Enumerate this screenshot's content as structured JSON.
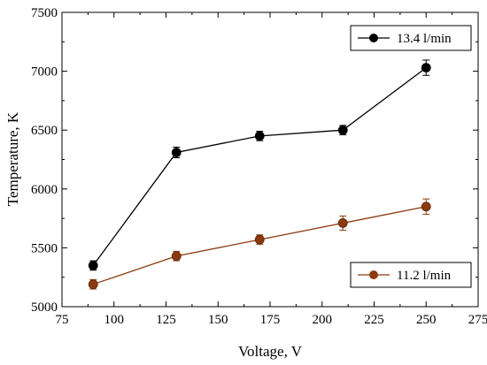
{
  "chart_data": {
    "type": "line",
    "xlabel": "Voltage, V",
    "ylabel": "Temperature, K",
    "xlim": [
      75,
      275
    ],
    "ylim": [
      5000,
      7500
    ],
    "x_ticks": [
      75,
      100,
      125,
      150,
      175,
      200,
      225,
      250,
      275
    ],
    "y_ticks": [
      5000,
      5500,
      6000,
      6500,
      7000,
      7500
    ],
    "grid": false,
    "series": [
      {
        "name": "13.4 l/min",
        "color": "#000000",
        "x": [
          90,
          130,
          170,
          210,
          250
        ],
        "y": [
          5350,
          6310,
          6450,
          6500,
          7030
        ],
        "error": [
          40,
          45,
          40,
          40,
          65
        ],
        "legend_position": "top-right"
      },
      {
        "name": "11.2 l/min",
        "color": "#8b3a0e",
        "x": [
          90,
          130,
          170,
          210,
          250
        ],
        "y": [
          5190,
          5430,
          5570,
          5710,
          5850
        ],
        "error": [
          40,
          40,
          40,
          60,
          65
        ],
        "legend_position": "bottom-right"
      }
    ]
  }
}
